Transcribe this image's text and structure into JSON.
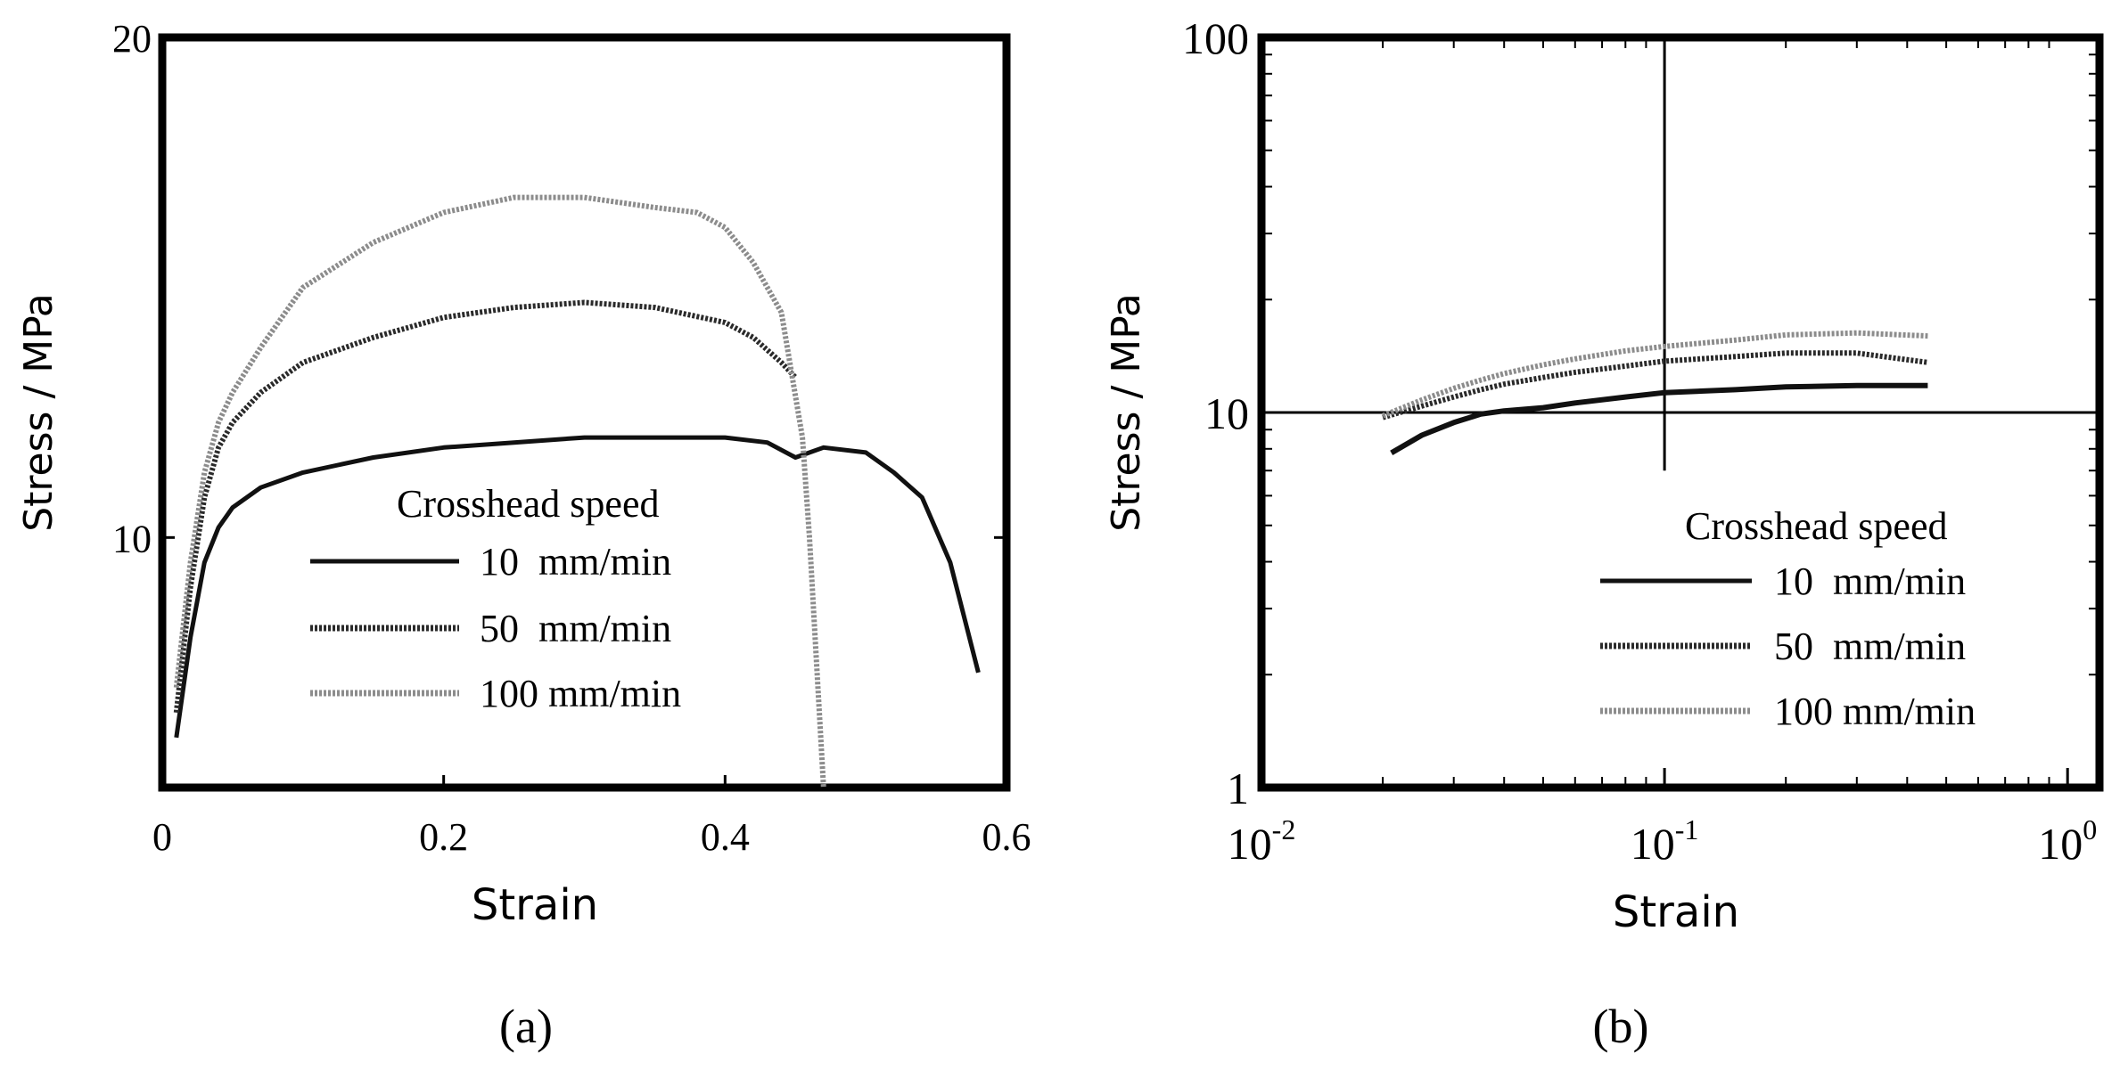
{
  "chart_data": [
    {
      "panel": "(a)",
      "type": "line",
      "xlabel": "Strain",
      "ylabel": "Stress / MPa",
      "xscale": "linear",
      "yscale": "linear",
      "xlim": [
        0,
        0.6
      ],
      "ylim": [
        5,
        20
      ],
      "xticks": [
        0,
        0.2,
        0.4,
        0.6
      ],
      "xtick_labels": [
        "0",
        "0.2",
        "0.4",
        "0.6"
      ],
      "yticks": [
        10,
        20
      ],
      "ytick_labels": [
        "10",
        "20"
      ],
      "grid": false,
      "legend": {
        "title": "Crosshead speed",
        "placement": "lower-right"
      },
      "series": [
        {
          "name": "10  mm/min",
          "color": "#111111",
          "style": "solid",
          "x": [
            0.01,
            0.02,
            0.03,
            0.04,
            0.05,
            0.07,
            0.1,
            0.15,
            0.2,
            0.25,
            0.3,
            0.35,
            0.4,
            0.43,
            0.45,
            0.47,
            0.5,
            0.52,
            0.54,
            0.56,
            0.58
          ],
          "y": [
            6.0,
            8.0,
            9.5,
            10.2,
            10.6,
            11.0,
            11.3,
            11.6,
            11.8,
            11.9,
            12.0,
            12.0,
            12.0,
            11.9,
            11.6,
            11.8,
            11.7,
            11.3,
            10.8,
            9.5,
            7.3
          ]
        },
        {
          "name": "50  mm/min",
          "color": "#2a2a2a",
          "style": "textured",
          "x": [
            0.01,
            0.02,
            0.03,
            0.04,
            0.05,
            0.07,
            0.1,
            0.15,
            0.2,
            0.25,
            0.3,
            0.35,
            0.4,
            0.42,
            0.44,
            0.45
          ],
          "y": [
            6.5,
            9.0,
            10.8,
            11.8,
            12.3,
            12.9,
            13.5,
            14.0,
            14.4,
            14.6,
            14.7,
            14.6,
            14.3,
            14.0,
            13.5,
            13.2
          ]
        },
        {
          "name": "100 mm/min",
          "color": "#8c8c8c",
          "style": "textured",
          "x": [
            0.01,
            0.02,
            0.03,
            0.04,
            0.05,
            0.07,
            0.1,
            0.15,
            0.2,
            0.25,
            0.3,
            0.35,
            0.38,
            0.4,
            0.42,
            0.44,
            0.455,
            0.46,
            0.465,
            0.47
          ],
          "y": [
            7.0,
            9.5,
            11.3,
            12.3,
            12.9,
            13.8,
            15.0,
            15.9,
            16.5,
            16.8,
            16.8,
            16.6,
            16.5,
            16.2,
            15.5,
            14.5,
            12.0,
            10.0,
            7.5,
            5.0
          ]
        }
      ]
    },
    {
      "panel": "(b)",
      "type": "line",
      "xlabel": "Strain",
      "ylabel": "Stress / MPa",
      "xscale": "log",
      "yscale": "log",
      "xlim": [
        0.01,
        1.2
      ],
      "ylim": [
        1,
        100
      ],
      "xticks": [
        0.01,
        0.1,
        1
      ],
      "xtick_labels": [
        {
          "base": "10",
          "exp": "-2"
        },
        {
          "base": "10",
          "exp": "-1"
        },
        {
          "base": "10",
          "exp": "0"
        }
      ],
      "yticks": [
        1,
        10,
        100
      ],
      "ytick_labels": [
        "1",
        "10",
        "100"
      ],
      "reference_lines": {
        "x": 0.1,
        "y": 10
      },
      "grid": false,
      "legend": {
        "title": "Crosshead speed",
        "placement": "lower-right"
      },
      "series": [
        {
          "name": "10  mm/min",
          "color": "#111111",
          "style": "solid",
          "x": [
            0.021,
            0.025,
            0.03,
            0.035,
            0.04,
            0.05,
            0.06,
            0.08,
            0.1,
            0.15,
            0.2,
            0.3,
            0.45
          ],
          "y": [
            7.8,
            8.7,
            9.4,
            9.9,
            10.1,
            10.3,
            10.6,
            11.0,
            11.3,
            11.5,
            11.7,
            11.8,
            11.8
          ]
        },
        {
          "name": "50  mm/min",
          "color": "#2a2a2a",
          "style": "textured",
          "x": [
            0.02,
            0.025,
            0.03,
            0.035,
            0.04,
            0.05,
            0.06,
            0.08,
            0.1,
            0.15,
            0.2,
            0.3,
            0.45
          ],
          "y": [
            9.7,
            10.4,
            11.0,
            11.5,
            11.9,
            12.4,
            12.8,
            13.3,
            13.7,
            14.1,
            14.4,
            14.4,
            13.6
          ]
        },
        {
          "name": "100 mm/min",
          "color": "#8c8c8c",
          "style": "textured",
          "x": [
            0.02,
            0.025,
            0.03,
            0.035,
            0.04,
            0.05,
            0.06,
            0.08,
            0.1,
            0.15,
            0.2,
            0.3,
            0.45
          ],
          "y": [
            9.8,
            10.8,
            11.6,
            12.2,
            12.7,
            13.4,
            13.9,
            14.6,
            15.0,
            15.6,
            16.1,
            16.3,
            16.0
          ]
        }
      ]
    }
  ]
}
